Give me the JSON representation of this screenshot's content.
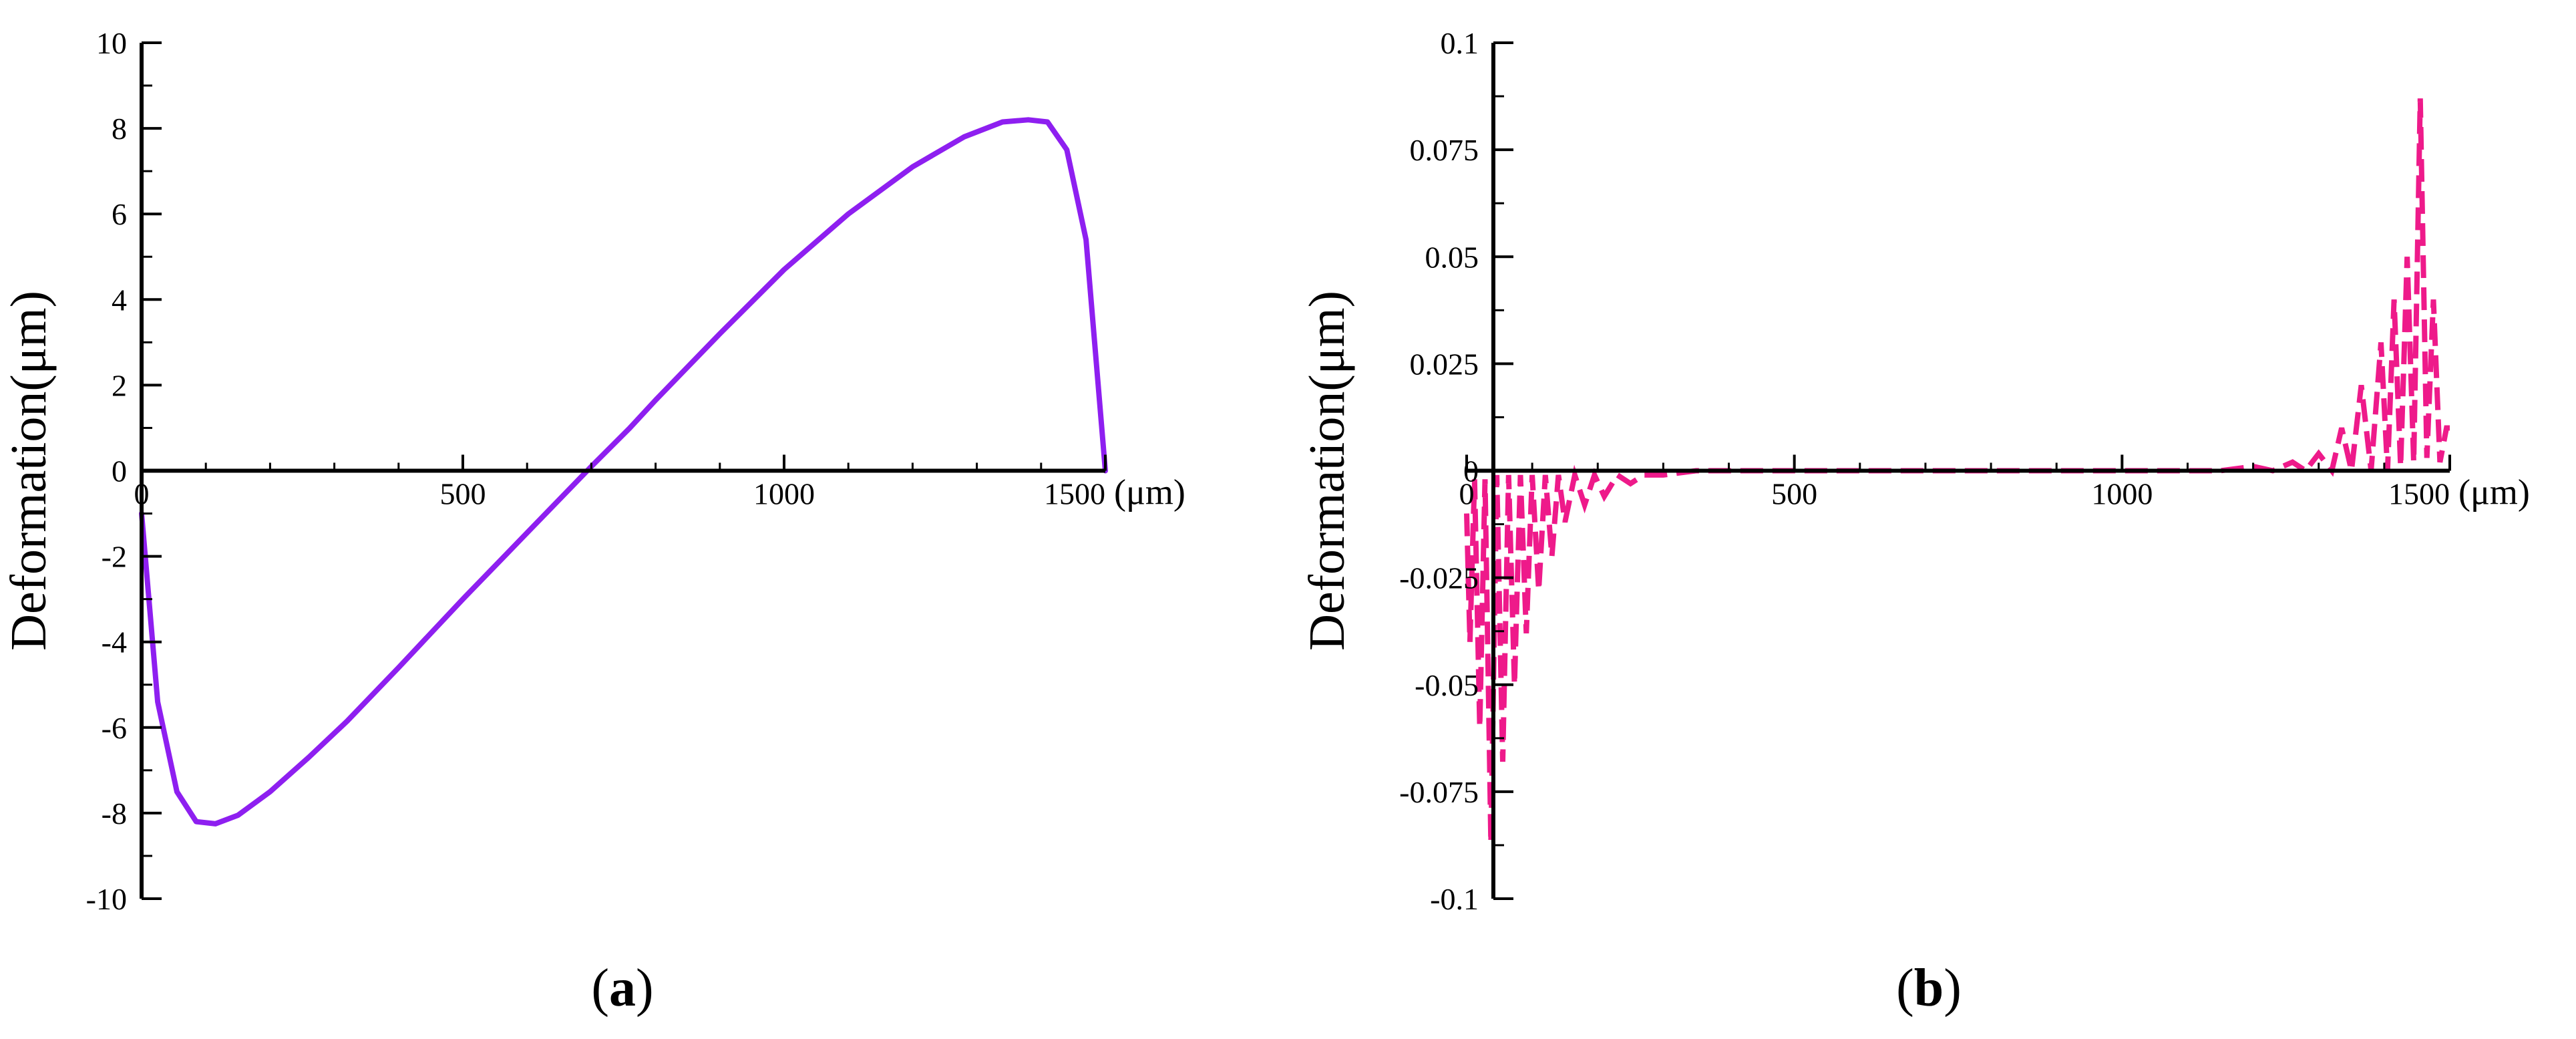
{
  "chart_data": [
    {
      "type": "line",
      "panel_label": {
        "open": "(",
        "letter": "a",
        "close": ")"
      },
      "ylabel": "Deformation(μm)",
      "x_unit": "(μm)",
      "xlim": [
        0,
        1500
      ],
      "ylim": [
        -10,
        10
      ],
      "x_ticks": [
        0,
        500,
        1000,
        1500
      ],
      "x_tick_labels": [
        "0",
        "500",
        "1000",
        "1500"
      ],
      "y_ticks": [
        -10,
        -8,
        -6,
        -4,
        -2,
        0,
        2,
        4,
        6,
        8,
        10
      ],
      "y_tick_labels": [
        "-10",
        "-8",
        "-6",
        "-4",
        "-2",
        "0",
        "2",
        "4",
        "6",
        "8",
        "10"
      ],
      "grid": false,
      "colors": {
        "line": "#8e1ff0"
      },
      "series": [
        {
          "style": "solid",
          "x": [
            0,
            25,
            55,
            85,
            115,
            150,
            200,
            260,
            320,
            400,
            500,
            600,
            700,
            760,
            800,
            900,
            1000,
            1100,
            1200,
            1280,
            1340,
            1380,
            1410,
            1440,
            1470,
            1500
          ],
          "y": [
            -1,
            -5.4,
            -7.5,
            -8.2,
            -8.25,
            -8.05,
            -7.5,
            -6.7,
            -5.85,
            -4.6,
            -3.0,
            -1.45,
            0.1,
            1.0,
            1.65,
            3.2,
            4.7,
            6.0,
            7.1,
            7.8,
            8.15,
            8.2,
            8.15,
            7.5,
            5.4,
            0
          ]
        }
      ]
    },
    {
      "type": "line",
      "panel_label": {
        "open": "(",
        "letter": "b",
        "close": ")"
      },
      "ylabel": "Deformation(μm)",
      "x_unit": "(μm)",
      "xlim": [
        0,
        1500
      ],
      "ylim": [
        -0.1,
        0.1
      ],
      "x_ticks": [
        0,
        500,
        1000,
        1500
      ],
      "x_tick_labels": [
        "0",
        "500",
        "1000",
        "1500"
      ],
      "y_ticks": [
        -0.1,
        -0.075,
        -0.05,
        -0.025,
        0,
        0.025,
        0.05,
        0.075,
        0.1
      ],
      "y_tick_labels": [
        "-0.1",
        "-0.075",
        "-0.05",
        "-0.025",
        "0",
        "0.025",
        "0.05",
        "0.075",
        "0.1"
      ],
      "grid": false,
      "colors": {
        "line": "#ee1a8a"
      },
      "series": [
        {
          "style": "dashed",
          "x": [
            0,
            5,
            12,
            20,
            28,
            37,
            46,
            55,
            64,
            73,
            82,
            91,
            100,
            110,
            120,
            130,
            140,
            150,
            165,
            180,
            195,
            210,
            230,
            250,
            270,
            300,
            350,
            400,
            600,
            800,
            1000,
            1150,
            1200,
            1230,
            1260,
            1280,
            1300,
            1320,
            1335,
            1350,
            1365,
            1380,
            1395,
            1405,
            1415,
            1425,
            1435,
            1445,
            1455,
            1465,
            1475,
            1485,
            1495,
            1500
          ],
          "y": [
            -0.01,
            -0.04,
            -0.002,
            -0.06,
            -0.002,
            -0.087,
            -0.001,
            -0.068,
            -0.001,
            -0.05,
            -0.001,
            -0.038,
            -0.001,
            -0.028,
            -0.001,
            -0.02,
            -0.001,
            -0.012,
            -0.001,
            -0.008,
            -0.001,
            -0.006,
            -0.001,
            -0.003,
            -0.001,
            -0.001,
            0,
            0,
            0,
            0,
            0,
            0,
            0.001,
            0,
            0.002,
            0,
            0.004,
            0,
            0.01,
            0,
            0.02,
            0,
            0.03,
            0,
            0.04,
            0.001,
            0.05,
            0.002,
            0.087,
            0.003,
            0.04,
            0.002,
            0.01,
            0.01
          ]
        }
      ]
    }
  ]
}
